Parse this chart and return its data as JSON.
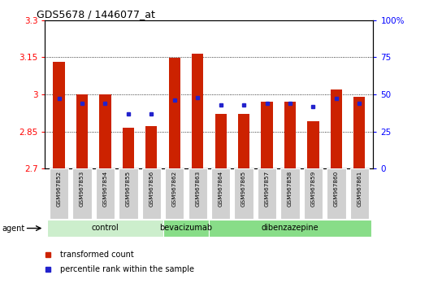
{
  "title": "GDS5678 / 1446077_at",
  "samples": [
    "GSM967852",
    "GSM967853",
    "GSM967854",
    "GSM967855",
    "GSM967856",
    "GSM967862",
    "GSM967863",
    "GSM967864",
    "GSM967865",
    "GSM967857",
    "GSM967858",
    "GSM967859",
    "GSM967860",
    "GSM967861"
  ],
  "red_values": [
    3.13,
    3.0,
    3.0,
    2.865,
    2.87,
    3.148,
    3.165,
    2.92,
    2.92,
    2.97,
    2.97,
    2.89,
    3.02,
    2.99
  ],
  "blue_values": [
    47,
    44,
    44,
    37,
    37,
    46,
    48,
    43,
    43,
    44,
    44,
    42,
    47,
    44
  ],
  "group_labels": [
    "control",
    "bevacizumab",
    "dibenzazepine"
  ],
  "group_starts": [
    0,
    5,
    7
  ],
  "group_ends": [
    5,
    7,
    14
  ],
  "group_colors": [
    "#cceecc",
    "#88dd88",
    "#88dd88"
  ],
  "ymin": 2.7,
  "ymax": 3.3,
  "yticks": [
    2.7,
    2.85,
    3.0,
    3.15,
    3.3
  ],
  "ytick_labels": [
    "2.7",
    "2.85",
    "3",
    "3.15",
    "3.3"
  ],
  "y2min": 0,
  "y2max": 100,
  "y2ticks": [
    0,
    25,
    50,
    75,
    100
  ],
  "y2tick_labels": [
    "0",
    "25",
    "50",
    "75",
    "100%"
  ],
  "bar_color": "#cc2200",
  "dot_color": "#2222cc",
  "background_color": "#ffffff",
  "agent_label": "agent",
  "legend_red": "transformed count",
  "legend_blue": "percentile rank within the sample",
  "grid_lines": [
    2.85,
    3.0,
    3.15
  ],
  "bar_width": 0.5
}
